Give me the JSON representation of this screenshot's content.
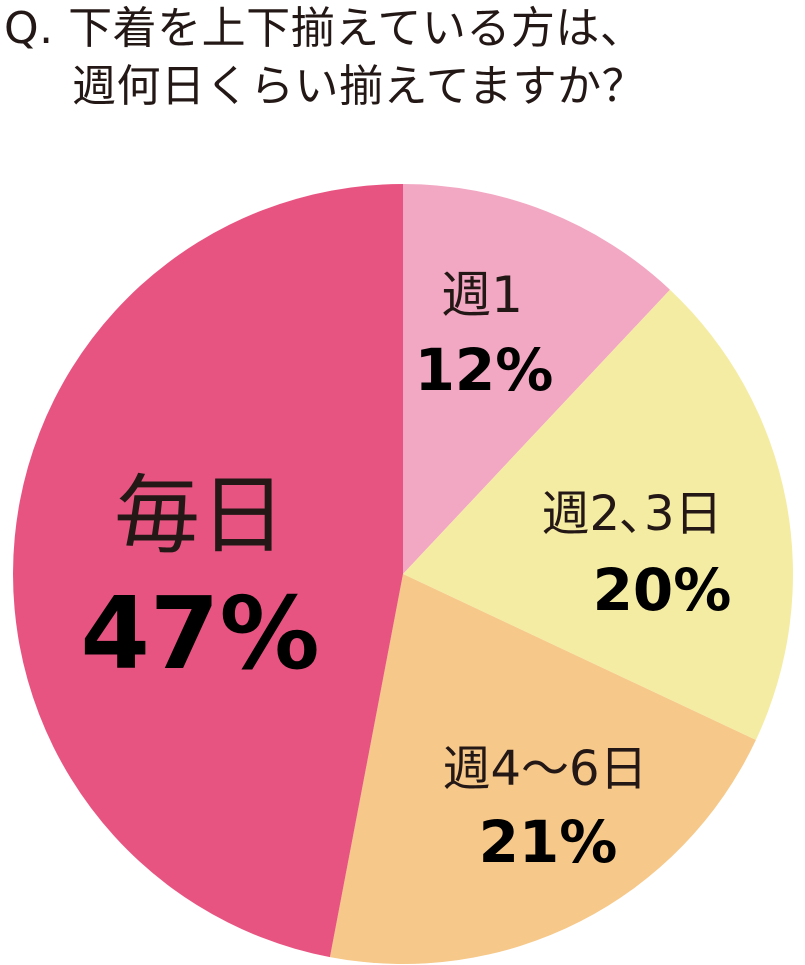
{
  "chart_data": {
    "type": "pie",
    "title_lines": [
      "Q. 下着を上下揃えている方は、",
      "週何日くらい揃えてますか？"
    ],
    "start_angle_deg": 0,
    "direction": "clockwise",
    "slices": [
      {
        "label": "週1",
        "value": 12,
        "value_label": "12%",
        "color": "#F2A7C3"
      },
      {
        "label": "週2､3日",
        "value": 20,
        "value_label": "20%",
        "color": "#F5ECA4"
      },
      {
        "label": "週4～6日",
        "value": 21,
        "value_label": "21%",
        "color": "#F6C889"
      },
      {
        "label": "毎日",
        "value": 47,
        "value_label": "47%",
        "color": "#E85482"
      }
    ]
  }
}
